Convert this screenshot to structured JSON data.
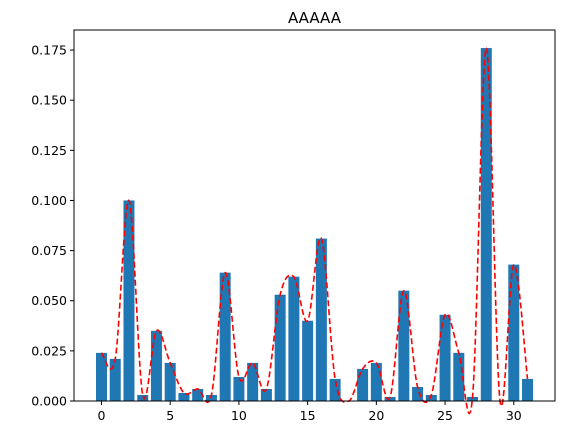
{
  "chart_data": {
    "type": "bar",
    "title": "AAAAA",
    "xlabel": "",
    "ylabel": "",
    "x": [
      0,
      1,
      2,
      3,
      4,
      5,
      6,
      7,
      8,
      9,
      10,
      11,
      12,
      13,
      14,
      15,
      16,
      17,
      18,
      19,
      20,
      21,
      22,
      23,
      24,
      25,
      26,
      27,
      28,
      29,
      30,
      31
    ],
    "series": [
      {
        "type": "bar",
        "color": "#1f77b4",
        "values": [
          0.024,
          0.021,
          0.1,
          0.003,
          0.035,
          0.019,
          0.004,
          0.006,
          0.003,
          0.064,
          0.012,
          0.019,
          0.006,
          0.053,
          0.062,
          0.04,
          0.081,
          0.011,
          0.0,
          0.016,
          0.019,
          0.002,
          0.055,
          0.007,
          0.003,
          0.043,
          0.024,
          0.002,
          0.176,
          0.0,
          0.068,
          0.011
        ]
      },
      {
        "type": "line",
        "style": "dashed",
        "color": "#ff0000",
        "values": [
          0.024,
          0.021,
          0.1,
          0.003,
          0.035,
          0.019,
          0.004,
          0.006,
          0.003,
          0.064,
          0.012,
          0.019,
          0.006,
          0.053,
          0.062,
          0.04,
          0.081,
          0.011,
          0.0,
          0.016,
          0.019,
          0.002,
          0.055,
          0.007,
          0.003,
          0.043,
          0.024,
          0.002,
          0.176,
          0.0,
          0.068,
          0.011
        ]
      }
    ],
    "xlim": [
      -2.0,
      33.0
    ],
    "ylim": [
      0,
      0.185
    ],
    "xticks": [
      0,
      5,
      10,
      15,
      20,
      25,
      30
    ],
    "yticks": [
      0.0,
      0.025,
      0.05,
      0.075,
      0.1,
      0.125,
      0.15,
      0.175
    ],
    "ytick_labels": [
      "0.000",
      "0.025",
      "0.050",
      "0.075",
      "0.100",
      "0.125",
      "0.150",
      "0.175"
    ],
    "grid": false,
    "legend": "none"
  }
}
